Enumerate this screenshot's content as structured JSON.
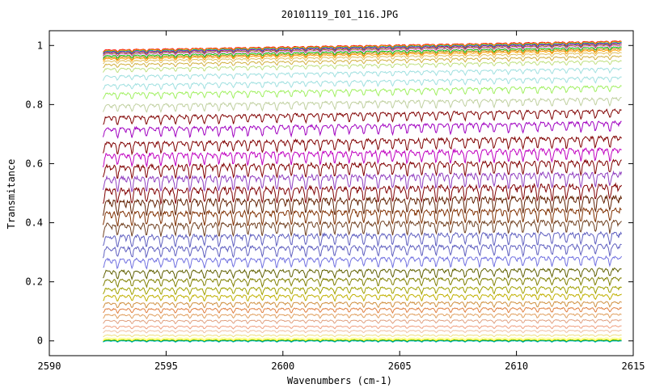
{
  "chart_data": {
    "type": "line",
    "title": "20101119_I01_116.JPG",
    "xlabel": "Wavenumbers (cm-1)",
    "ylabel": "Transmitance",
    "xlim": [
      2590,
      2615
    ],
    "ylim": [
      -0.05,
      1.05
    ],
    "x_ticks": [
      "2590",
      "2595",
      "2600",
      "2605",
      "2610",
      "2615"
    ],
    "y_ticks": [
      "0",
      "0.2",
      "0.4",
      "0.6",
      "0.8",
      "1"
    ],
    "grid": false,
    "legend": "none",
    "x_range_data": [
      2592.3,
      2614.5
    ],
    "line_spacing_cm1": 0.62,
    "series_baselines": [
      1.0,
      0.998,
      0.995,
      0.992,
      0.988,
      0.985,
      0.98,
      0.975,
      0.97,
      0.962,
      0.95,
      0.935,
      0.91,
      0.88,
      0.85,
      0.81,
      0.77,
      0.73,
      0.68,
      0.64,
      0.6,
      0.56,
      0.52,
      0.48,
      0.44,
      0.4,
      0.36,
      0.32,
      0.28,
      0.24,
      0.21,
      0.18,
      0.155,
      0.13,
      0.11,
      0.09,
      0.07,
      0.05,
      0.035,
      0.02,
      0.01,
      0.005,
      0.002,
      0.0
    ],
    "series_colors": [
      "#ff0000",
      "#e0a000",
      "#00a0a0",
      "#a000a0",
      "#808000",
      "#ff80ff",
      "#00c000",
      "#c08000",
      "#ffa000",
      "#e0c060",
      "#d0b040",
      "#c0e080",
      "#a0e0e0",
      "#a0e0e0",
      "#a0f060",
      "#c0d0a0",
      "#800000",
      "#a000c0",
      "#800000",
      "#c000c0",
      "#800000",
      "#9040c0",
      "#800000",
      "#602000",
      "#803000",
      "#704020",
      "#6060c0",
      "#6060c0",
      "#7070e0",
      "#606000",
      "#808000",
      "#a0a000",
      "#c0b000",
      "#d09040",
      "#e08040",
      "#e0a060",
      "#e0a080",
      "#f0a080",
      "#f0c0a0",
      "#f0e080",
      "#ffff80",
      "#ffff00",
      "#008000",
      "#00c0c0"
    ]
  }
}
